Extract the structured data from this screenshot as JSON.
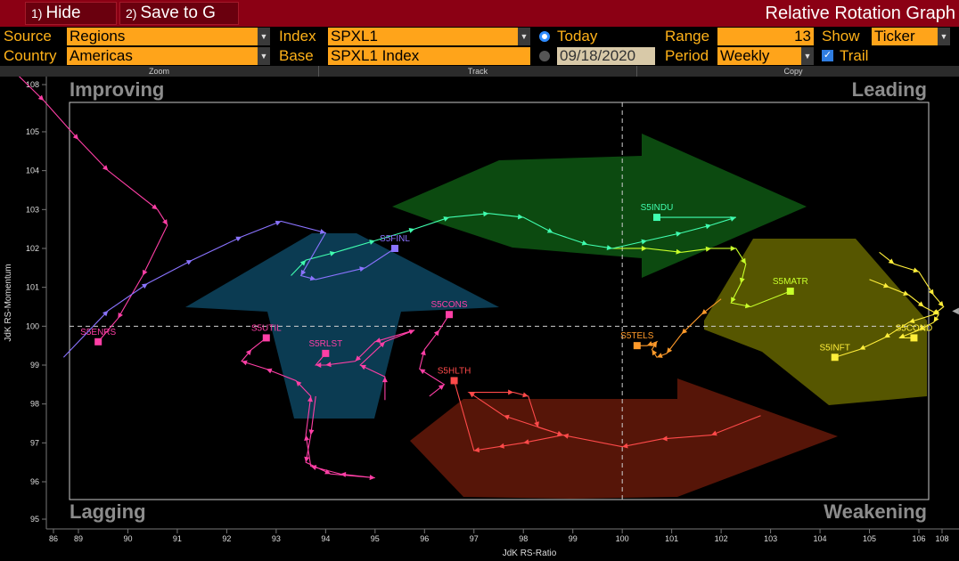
{
  "toolbar": {
    "hide_num": "1)",
    "hide_label": "Hide",
    "save_num": "2)",
    "save_label": "Save to G",
    "title": "Relative Rotation Graph"
  },
  "params": {
    "source_label": "Source",
    "source_value": "Regions",
    "country_label": "Country",
    "country_value": "Americas",
    "index_label": "Index",
    "index_value": "SPXL1",
    "base_label": "Base",
    "base_value": "SPXL1 Index",
    "today_label": "Today",
    "date_value": "09/18/2020",
    "range_label": "Range",
    "range_value": "13",
    "period_label": "Period",
    "period_value": "Weekly",
    "show_label": "Show",
    "show_value": "Ticker",
    "trail_label": "Trail"
  },
  "strip": {
    "zoom": "Zoom",
    "track": "Track",
    "copy": "Copy"
  },
  "colors": {
    "accent": "#ffa41a",
    "titlebar": "#8b0014",
    "label": "#ffb219"
  },
  "chart_data": {
    "type": "scatter",
    "xlabel": "JdK RS-Ratio",
    "ylabel": "JdK RS-Momentum",
    "xlim": [
      86,
      108
    ],
    "ylim": [
      95,
      108
    ],
    "x_ticks": [
      "86",
      "89",
      "90",
      "91",
      "92",
      "93",
      "94",
      "95",
      "96",
      "97",
      "98",
      "99",
      "100",
      "101",
      "102",
      "103",
      "104",
      "105",
      "106",
      "108"
    ],
    "y_ticks": [
      "95",
      "96",
      "97",
      "98",
      "99",
      "100",
      "101",
      "102",
      "103",
      "104",
      "105",
      "108"
    ],
    "quadrants": {
      "top_left": "Improving",
      "top_right": "Leading",
      "bottom_left": "Lagging",
      "bottom_right": "Weakening"
    },
    "series": [
      {
        "name": "S5ENRS",
        "color": "#ff3fa6",
        "points": [
          [
            86.8,
            108.0
          ],
          [
            87.5,
            106.8
          ],
          [
            88.3,
            105.8
          ],
          [
            89.0,
            104.8
          ],
          [
            89.6,
            104.0
          ],
          [
            90.6,
            103.0
          ],
          [
            90.8,
            102.6
          ],
          [
            90.3,
            101.3
          ],
          [
            89.8,
            100.2
          ],
          [
            89.4,
            99.6
          ]
        ]
      },
      {
        "name": "S5UTIL",
        "color": "#ff3fa6",
        "points": [
          [
            93.8,
            98.2
          ],
          [
            93.7,
            97.2
          ],
          [
            93.6,
            96.5
          ],
          [
            94.1,
            96.2
          ],
          [
            95.0,
            96.1
          ],
          [
            94.3,
            96.2
          ],
          [
            93.7,
            96.4
          ],
          [
            93.6,
            97.2
          ],
          [
            93.7,
            98.2
          ],
          [
            93.4,
            98.6
          ],
          [
            92.8,
            98.9
          ],
          [
            92.3,
            99.1
          ],
          [
            92.5,
            99.4
          ],
          [
            92.8,
            99.7
          ]
        ]
      },
      {
        "name": "S5RLST",
        "color": "#ff3fa6",
        "points": [
          [
            95.2,
            98.1
          ],
          [
            95.2,
            98.7
          ],
          [
            94.7,
            99.0
          ],
          [
            95.2,
            99.6
          ],
          [
            95.8,
            99.9
          ],
          [
            95.0,
            99.6
          ],
          [
            94.6,
            99.1
          ],
          [
            94.0,
            99.0
          ],
          [
            93.8,
            99.0
          ],
          [
            94.0,
            99.3
          ]
        ]
      },
      {
        "name": "S5CONS",
        "color": "#ff3fa6",
        "points": [
          [
            96.1,
            98.2
          ],
          [
            96.4,
            98.5
          ],
          [
            95.9,
            98.9
          ],
          [
            96.0,
            99.4
          ],
          [
            96.3,
            99.9
          ],
          [
            96.5,
            100.3
          ]
        ]
      },
      {
        "name": "S5HLTH",
        "color": "#ff4a4a",
        "points": [
          [
            102.8,
            97.7
          ],
          [
            101.8,
            97.2
          ],
          [
            100.8,
            97.1
          ],
          [
            100.0,
            96.9
          ],
          [
            98.8,
            97.2
          ],
          [
            97.6,
            97.7
          ],
          [
            96.9,
            98.3
          ],
          [
            97.8,
            98.3
          ],
          [
            98.1,
            98.2
          ],
          [
            98.3,
            97.4
          ],
          [
            98.8,
            97.2
          ],
          [
            98.0,
            97.0
          ],
          [
            97.5,
            96.9
          ],
          [
            97.0,
            96.8
          ],
          [
            96.6,
            98.6
          ]
        ]
      },
      {
        "name": "S5TELS",
        "color": "#ff9a2a",
        "points": [
          [
            102.0,
            100.7
          ],
          [
            101.6,
            100.3
          ],
          [
            101.2,
            99.8
          ],
          [
            100.9,
            99.3
          ],
          [
            100.7,
            99.2
          ],
          [
            100.6,
            99.4
          ],
          [
            100.7,
            99.6
          ],
          [
            100.5,
            99.5
          ],
          [
            100.3,
            99.5
          ]
        ]
      },
      {
        "name": "S5MATR",
        "color": "#c8ff2a",
        "points": [
          [
            99.8,
            102.0
          ],
          [
            100.5,
            102.0
          ],
          [
            101.2,
            101.9
          ],
          [
            101.8,
            102.0
          ],
          [
            102.3,
            102.0
          ],
          [
            102.5,
            101.6
          ],
          [
            102.4,
            101.1
          ],
          [
            102.2,
            100.6
          ],
          [
            102.6,
            100.5
          ],
          [
            103.4,
            100.9
          ]
        ]
      },
      {
        "name": "S5INDU",
        "color": "#40ffb0",
        "points": [
          [
            93.3,
            101.3
          ],
          [
            93.6,
            101.7
          ],
          [
            94.2,
            101.9
          ],
          [
            95.0,
            102.2
          ],
          [
            95.8,
            102.5
          ],
          [
            96.5,
            102.8
          ],
          [
            97.3,
            102.9
          ],
          [
            98.0,
            102.8
          ],
          [
            98.6,
            102.4
          ],
          [
            99.3,
            102.1
          ],
          [
            99.8,
            102.0
          ],
          [
            100.5,
            102.2
          ],
          [
            101.2,
            102.4
          ],
          [
            101.8,
            102.6
          ],
          [
            102.3,
            102.8
          ],
          [
            100.7,
            102.8
          ]
        ]
      },
      {
        "name": "S5FINL",
        "color": "#8a73ff",
        "points": [
          [
            88.7,
            99.2
          ],
          [
            89.6,
            100.4
          ],
          [
            90.4,
            101.1
          ],
          [
            91.3,
            101.7
          ],
          [
            92.3,
            102.3
          ],
          [
            93.1,
            102.7
          ],
          [
            94.0,
            102.4
          ],
          [
            93.5,
            101.3
          ],
          [
            93.8,
            101.2
          ],
          [
            94.8,
            101.5
          ],
          [
            95.4,
            102.0
          ]
        ]
      },
      {
        "name": "S5INFT",
        "color": "#ffee3a",
        "points": [
          [
            105.2,
            101.9
          ],
          [
            105.5,
            101.6
          ],
          [
            106.0,
            101.4
          ],
          [
            106.3,
            100.8
          ],
          [
            106.5,
            100.5
          ],
          [
            106.3,
            100.3
          ],
          [
            105.8,
            100.1
          ],
          [
            105.3,
            99.7
          ],
          [
            104.8,
            99.4
          ],
          [
            104.3,
            99.2
          ]
        ]
      },
      {
        "name": "S5COND",
        "color": "#ffee3a",
        "points": [
          [
            105.0,
            101.2
          ],
          [
            105.4,
            101.0
          ],
          [
            105.8,
            100.8
          ],
          [
            106.1,
            100.5
          ],
          [
            106.4,
            100.3
          ],
          [
            106.3,
            100.1
          ],
          [
            106.0,
            99.9
          ],
          [
            105.6,
            99.7
          ],
          [
            105.9,
            99.7
          ]
        ]
      }
    ]
  }
}
